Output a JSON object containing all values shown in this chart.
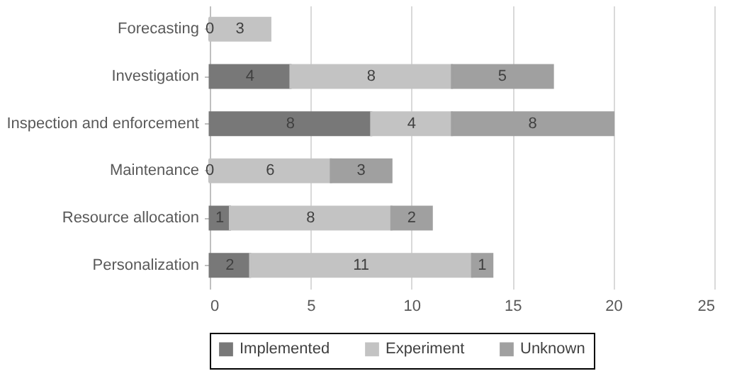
{
  "chart_data": {
    "type": "bar",
    "orientation": "horizontal",
    "stacked": true,
    "categories": [
      "Forecasting",
      "Investigation",
      "Inspection and enforcement",
      "Maintenance",
      "Resource allocation",
      "Personalization"
    ],
    "series": [
      {
        "name": "Implemented",
        "color": "#787878",
        "values": [
          0,
          4,
          8,
          0,
          1,
          2
        ],
        "value_labels": [
          "0",
          "4",
          "8",
          "0",
          "1",
          "2"
        ]
      },
      {
        "name": "Experiment",
        "color": "#c3c3c3",
        "values": [
          3,
          8,
          4,
          6,
          8,
          11
        ],
        "value_labels": [
          "3",
          "8",
          "4",
          "6",
          "8",
          "11"
        ]
      },
      {
        "name": "Unknown",
        "color": "#a0a0a0",
        "values": [
          null,
          5,
          8,
          3,
          2,
          1
        ],
        "value_labels": [
          null,
          "5",
          "8",
          "3",
          "2",
          "1"
        ]
      }
    ],
    "xlim": [
      0,
      25
    ],
    "xticks": [
      0,
      5,
      10,
      15,
      20,
      25
    ],
    "grid": "x",
    "legend": "bottom"
  }
}
